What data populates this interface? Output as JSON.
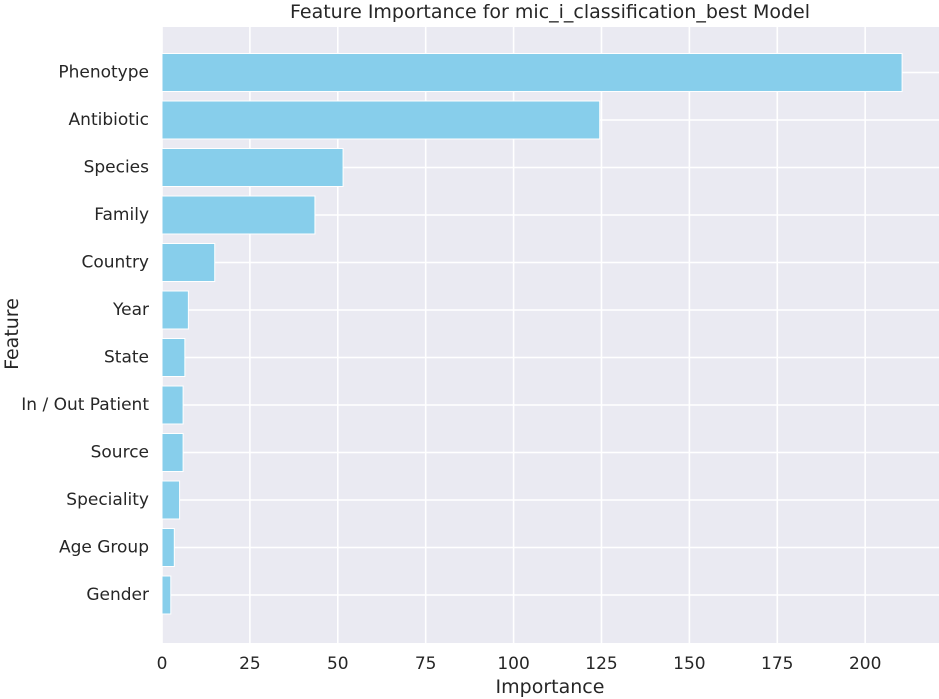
{
  "chart_data": {
    "type": "bar",
    "orientation": "horizontal",
    "title": "Feature Importance for mic_i_classification_best Model",
    "xlabel": "Importance",
    "ylabel": "Feature",
    "categories": [
      "Phenotype",
      "Antibiotic",
      "Species",
      "Family",
      "Country",
      "Year",
      "State",
      "In / Out Patient",
      "Source",
      "Speciality",
      "Age Group",
      "Gender"
    ],
    "values": [
      210.5,
      124.5,
      51.5,
      43.5,
      15.0,
      7.5,
      6.5,
      6.0,
      6.0,
      5.0,
      3.5,
      2.5
    ],
    "xlim": [
      0,
      221
    ],
    "xticks": [
      0,
      25,
      50,
      75,
      100,
      125,
      150,
      175,
      200
    ],
    "grid": true,
    "bar_color": "#87ceeb",
    "background_color": "#eaeaf2",
    "grid_color": "#ffffff"
  }
}
